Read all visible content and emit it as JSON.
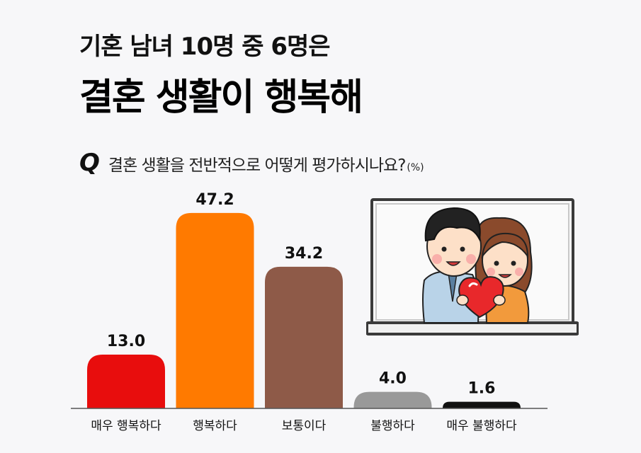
{
  "header": {
    "line1": "기혼 남녀 10명 중 6명은",
    "line2": "결혼 생활이 행복해"
  },
  "question": {
    "mark": "Q",
    "text": "결혼 생활을 전반적으로 어떻게 평가하시나요?",
    "unit": "(%)"
  },
  "chart_data": {
    "type": "bar",
    "categories": [
      "매우 행복하다",
      "행복하다",
      "보통이다",
      "불행하다",
      "매우 불행하다"
    ],
    "values": [
      13.0,
      47.2,
      34.2,
      4.0,
      1.6
    ],
    "value_labels": [
      "13.0",
      "47.2",
      "34.2",
      "4.0",
      "1.6"
    ],
    "colors": [
      "#e80d0d",
      "#ff7a00",
      "#8e5a48",
      "#999999",
      "#111111"
    ],
    "unit": "%",
    "grid": false
  },
  "illustration": {
    "subject": "couple-holding-heart",
    "colors": {
      "heart": "#e8282b",
      "frame": "#444444"
    }
  }
}
